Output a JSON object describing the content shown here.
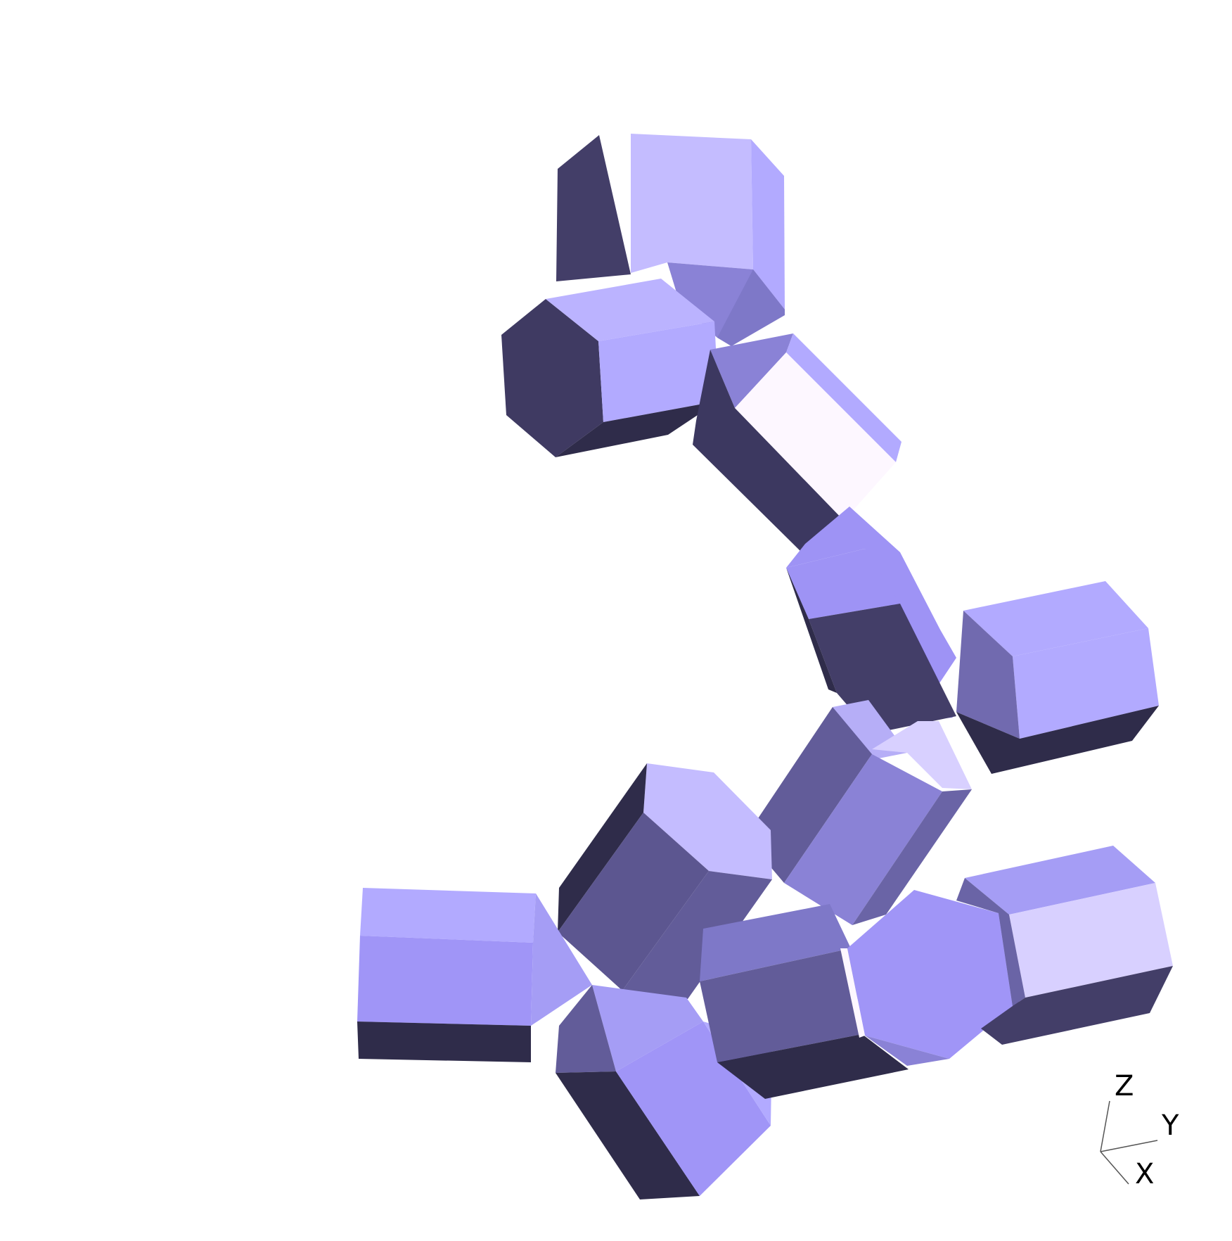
{
  "scene": {
    "background": "#ffffff",
    "object": "hexagonal-prisms",
    "prism_count": 14,
    "palette": {
      "light": "#c4bcff",
      "mid": "#b2aaff",
      "bright": "#a095f7",
      "shade": "#8a82d6",
      "muted": "#625c99",
      "dark": "#433e68",
      "darkest": "#2f2c4a",
      "highlight": "#fdf7ff"
    }
  },
  "axes": {
    "z_label": "Z",
    "y_label": "Y",
    "x_label": "X"
  }
}
